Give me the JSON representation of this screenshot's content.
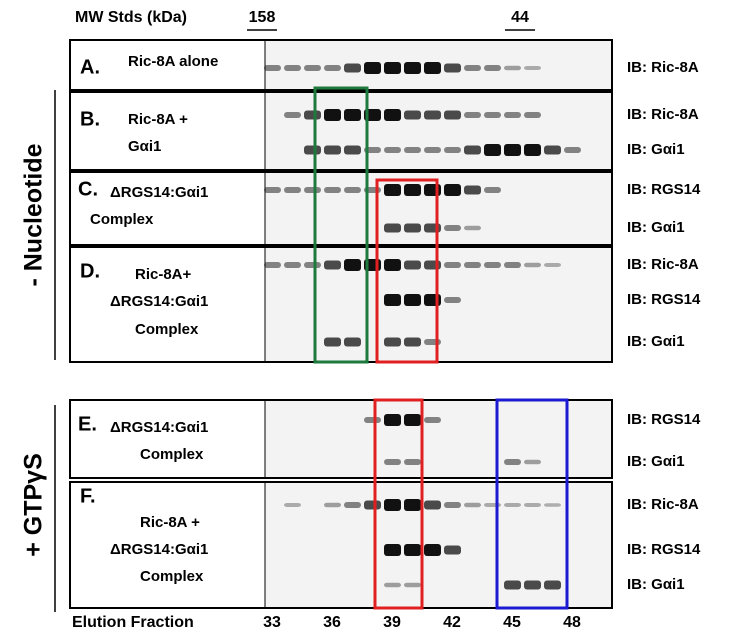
{
  "header": {
    "mw_label": "MW Stds (kDa)",
    "mw_markers": [
      "158",
      "44"
    ]
  },
  "groups": [
    {
      "label": "- Nucleotide"
    },
    {
      "label": "+ GTPγS"
    }
  ],
  "panels": [
    {
      "letter": "A.",
      "lines": [
        "Ric-8A alone"
      ],
      "blots": [
        "IB: Ric-8A"
      ]
    },
    {
      "letter": "B.",
      "lines": [
        "Ric-8A +",
        "Gαi1"
      ],
      "blots": [
        "IB: Ric-8A",
        "IB: Gαi1"
      ]
    },
    {
      "letter": "C.",
      "lines": [
        "ΔRGS14:Gαi1",
        "Complex"
      ],
      "blots": [
        "IB: RGS14",
        "IB: Gαi1"
      ]
    },
    {
      "letter": "D.",
      "lines": [
        "Ric-8A+",
        "ΔRGS14:Gαi1",
        "Complex"
      ],
      "blots": [
        "IB: Ric-8A",
        "IB: RGS14",
        "IB: Gαi1"
      ]
    },
    {
      "letter": "E.",
      "lines": [
        "ΔRGS14:Gαi1",
        "Complex"
      ],
      "blots": [
        "IB: RGS14",
        "IB: Gαi1"
      ]
    },
    {
      "letter": "F.",
      "lines": [
        "Ric-8A +",
        "ΔRGS14:Gαi1",
        "Complex"
      ],
      "blots": [
        "IB: Ric-8A",
        "IB: RGS14",
        "IB: Gαi1"
      ]
    }
  ],
  "footer": {
    "label": "Elution Fraction",
    "fractions": [
      33,
      36,
      39,
      42,
      45,
      48
    ]
  }
}
